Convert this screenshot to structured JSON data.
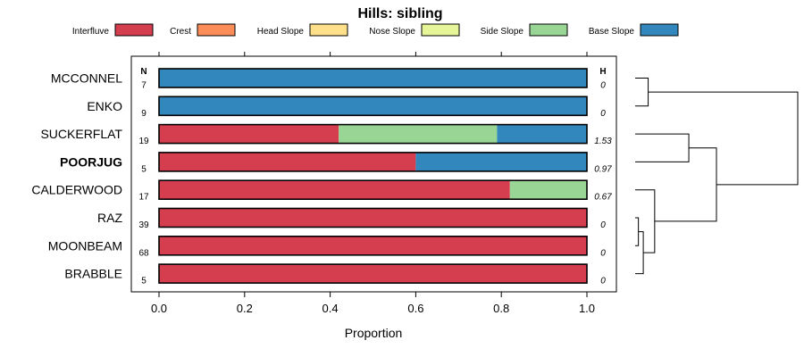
{
  "chart_data": {
    "type": "bar",
    "stacked": true,
    "orientation": "horizontal",
    "title": "Hills: sibling",
    "xlabel": "Proportion",
    "xlim": [
      0,
      1
    ],
    "xticks": [
      0.0,
      0.2,
      0.4,
      0.6,
      0.8,
      1.0
    ],
    "xtick_labels": [
      "0.0",
      "0.2",
      "0.4",
      "0.6",
      "0.8",
      "1.0"
    ],
    "n_header": "N",
    "h_header": "H",
    "legend": [
      {
        "name": "Interfluve",
        "color": "#D53E4F"
      },
      {
        "name": "Crest",
        "color": "#FC8D59"
      },
      {
        "name": "Head Slope",
        "color": "#FEE08B"
      },
      {
        "name": "Nose Slope",
        "color": "#E6F598"
      },
      {
        "name": "Side Slope",
        "color": "#99D594"
      },
      {
        "name": "Base Slope",
        "color": "#3288BD"
      }
    ],
    "categories": [
      "MCCONNEL",
      "ENKO",
      "SUCKERFLAT",
      "POORJUG",
      "CALDERWOOD",
      "RAZ",
      "MOONBEAM",
      "BRABBLE"
    ],
    "highlight": "POORJUG",
    "n": [
      "7",
      "9",
      "19",
      "5",
      "17",
      "39",
      "68",
      "5"
    ],
    "h": [
      "0",
      "0",
      "1.53",
      "0.97",
      "0.67",
      "0",
      "0",
      "0"
    ],
    "series": [
      {
        "name": "Interfluve",
        "values": [
          0,
          0,
          0.42,
          0.6,
          0.82,
          1.0,
          1.0,
          1.0
        ]
      },
      {
        "name": "Crest",
        "values": [
          0,
          0,
          0,
          0,
          0,
          0,
          0,
          0
        ]
      },
      {
        "name": "Head Slope",
        "values": [
          0,
          0,
          0,
          0,
          0,
          0,
          0,
          0
        ]
      },
      {
        "name": "Nose Slope",
        "values": [
          0,
          0,
          0,
          0,
          0,
          0,
          0,
          0
        ]
      },
      {
        "name": "Side Slope",
        "values": [
          0,
          0,
          0.37,
          0,
          0.18,
          0,
          0,
          0
        ]
      },
      {
        "name": "Base Slope",
        "values": [
          1.0,
          1.0,
          0.21,
          0.4,
          0,
          0,
          0,
          0
        ]
      }
    ],
    "dendrogram": {
      "leaves": [
        "MCCONNEL",
        "ENKO",
        "SUCKERFLAT",
        "POORJUG",
        "CALDERWOOD",
        "RAZ",
        "MOONBEAM",
        "BRABBLE"
      ],
      "merges": [
        {
          "id": "m1",
          "children": [
            "RAZ",
            "MOONBEAM"
          ],
          "height": 0.02
        },
        {
          "id": "m2",
          "children": [
            "m1",
            "BRABBLE"
          ],
          "height": 0.05
        },
        {
          "id": "m3",
          "children": [
            "MCCONNEL",
            "ENKO"
          ],
          "height": 0.08
        },
        {
          "id": "m4",
          "children": [
            "CALDERWOOD",
            "m2"
          ],
          "height": 0.12
        },
        {
          "id": "m5",
          "children": [
            "SUCKERFLAT",
            "POORJUG"
          ],
          "height": 0.33
        },
        {
          "id": "m6",
          "children": [
            "m5",
            "m4"
          ],
          "height": 0.5
        },
        {
          "id": "m7",
          "children": [
            "m3",
            "m6"
          ],
          "height": 1.0
        }
      ]
    }
  }
}
